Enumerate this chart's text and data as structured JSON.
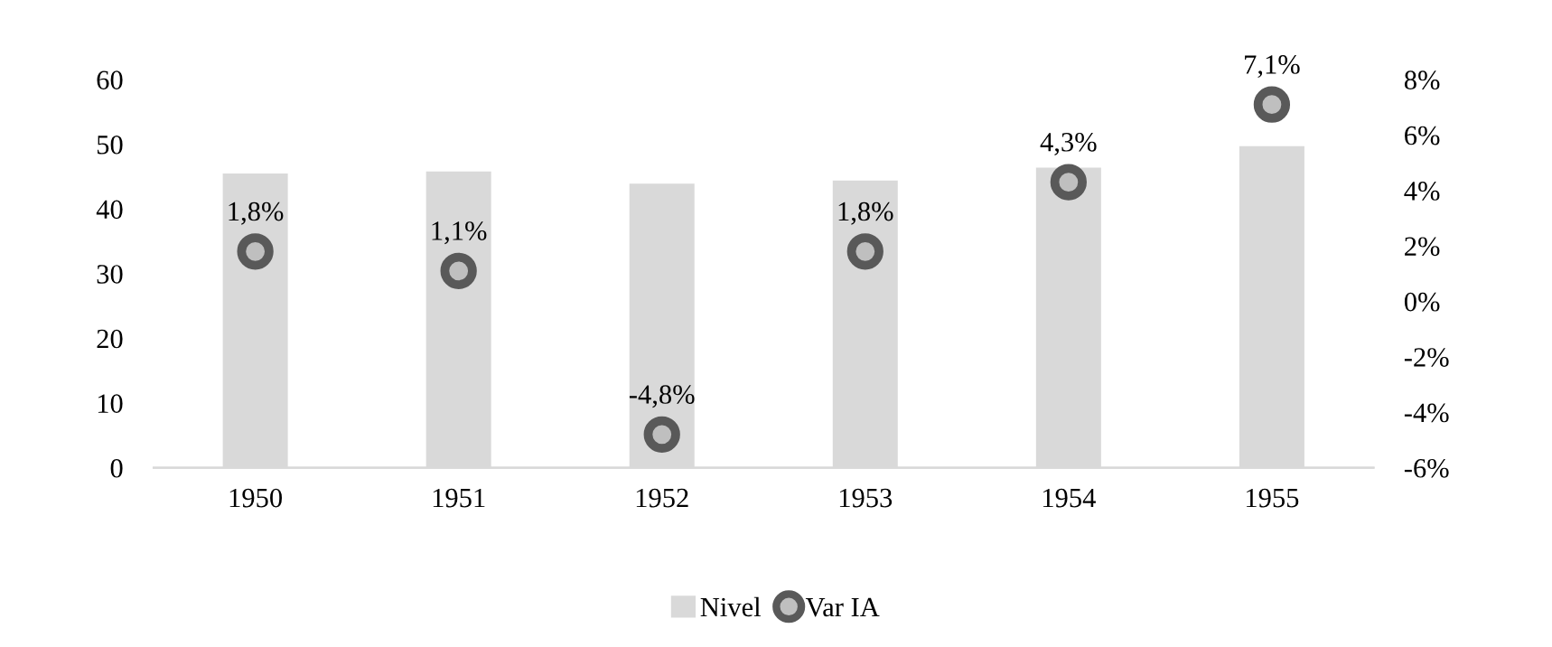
{
  "chart_data": {
    "type": "bar",
    "categories": [
      "1950",
      "1951",
      "1952",
      "1953",
      "1954",
      "1955"
    ],
    "series": [
      {
        "name": "Nivel",
        "color": "#d9d9d9",
        "values": [
          45.5,
          45.8,
          43.9,
          44.4,
          46.4,
          49.7
        ]
      },
      {
        "name": "Var IA",
        "type": "scatter",
        "axis": "y2",
        "color": "#595959",
        "marker": "circle",
        "values": [
          1.8,
          1.1,
          -4.8,
          1.8,
          4.3,
          7.1
        ],
        "value_labels": [
          "1,8%",
          "1,1%",
          "-4,8%",
          "1,8%",
          "4,3%",
          "7,1%"
        ]
      }
    ],
    "ylim": [
      0,
      60
    ],
    "yticks": [
      0,
      10,
      20,
      30,
      40,
      50,
      60
    ],
    "y2lim": [
      -6,
      8
    ],
    "y2ticks": [
      {
        "value": -6,
        "label": "-6%"
      },
      {
        "value": -4,
        "label": "-4%"
      },
      {
        "value": -2,
        "label": "-2%"
      },
      {
        "value": 0,
        "label": "0%"
      },
      {
        "value": 2,
        "label": "2%"
      },
      {
        "value": 4,
        "label": "4%"
      },
      {
        "value": 6,
        "label": "6%"
      },
      {
        "value": 8,
        "label": "8%"
      }
    ],
    "grid": false,
    "legend": "bottom"
  }
}
